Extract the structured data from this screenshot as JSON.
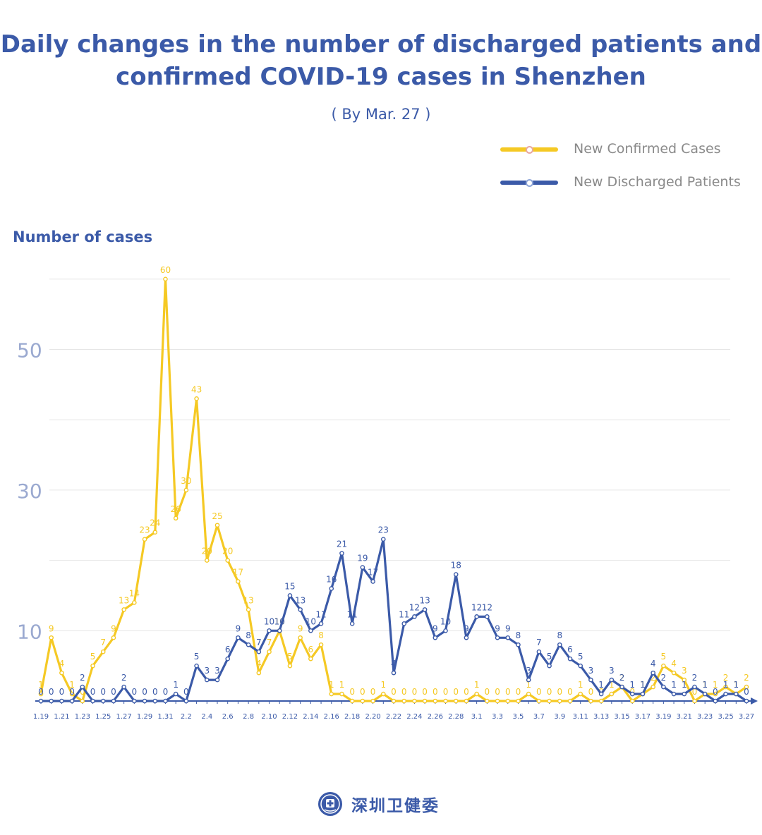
{
  "header": {
    "title_line1": "Daily changes in the number of discharged patients and",
    "title_line2": "confirmed COVID-19 cases in Shenzhen",
    "subtitle": "( By Mar. 27 )"
  },
  "legend": {
    "confirmed_label": "New Confirmed Cases",
    "discharged_label": "New Discharged Patients"
  },
  "footer": {
    "org_name": "深圳卫健委"
  },
  "chart_data": {
    "type": "line",
    "title": "Daily changes in the number of discharged patients and confirmed COVID-19 cases in Shenzhen",
    "subtitle": "( By Mar. 27 )",
    "ylabel": "Number of cases",
    "xlabel": "",
    "ylim": [
      0,
      60
    ],
    "y_ticks": [
      10,
      30,
      50
    ],
    "grid": true,
    "legend_position": "top-right",
    "x": [
      "1.19",
      "1.20",
      "1.21",
      "1.22",
      "1.23",
      "1.24",
      "1.25",
      "1.26",
      "1.27",
      "1.28",
      "1.29",
      "1.30",
      "1.31",
      "2.1",
      "2.2",
      "2.3",
      "2.4",
      "2.5",
      "2.6",
      "2.7",
      "2.8",
      "2.9",
      "2.10",
      "2.11",
      "2.12",
      "2.13",
      "2.14",
      "2.15",
      "2.16",
      "2.17",
      "2.18",
      "2.19",
      "2.20",
      "2.21",
      "2.22",
      "2.23",
      "2.24",
      "2.25",
      "2.26",
      "2.27",
      "2.28",
      "2.29",
      "3.1",
      "3.2",
      "3.3",
      "3.4",
      "3.5",
      "3.6",
      "3.7",
      "3.8",
      "3.9",
      "3.10",
      "3.11",
      "3.12",
      "3.13",
      "3.14",
      "3.15",
      "3.16",
      "3.17",
      "3.18",
      "3.19",
      "3.20",
      "3.21",
      "3.22",
      "3.23",
      "3.24",
      "3.25",
      "3.26",
      "3.27"
    ],
    "x_tick_labels": [
      "1.19",
      "1.21",
      "1.23",
      "1.25",
      "1.27",
      "1.29",
      "1.31",
      "2.2",
      "2.4",
      "2.6",
      "2.8",
      "2.10",
      "2.12",
      "2.14",
      "2.16",
      "2.18",
      "2.20",
      "2.22",
      "2.24",
      "2.26",
      "2.28",
      "3.1",
      "3.3",
      "3.5",
      "3.7",
      "3.9",
      "3.11",
      "3.13",
      "3.15",
      "3.17",
      "3.19",
      "3.21",
      "3.23",
      "3.25",
      "3.27"
    ],
    "series": [
      {
        "name": "New Confirmed Cases",
        "color": "#f5c924",
        "values": [
          1,
          9,
          4,
          1,
          0,
          5,
          7,
          9,
          13,
          14,
          23,
          24,
          60,
          26,
          30,
          43,
          20,
          25,
          20,
          17,
          13,
          4,
          7,
          10,
          5,
          9,
          6,
          8,
          1,
          1,
          0,
          0,
          0,
          1,
          0,
          0,
          0,
          0,
          0,
          0,
          0,
          0,
          1,
          0,
          0,
          0,
          0,
          1,
          0,
          0,
          0,
          0,
          1,
          0,
          0,
          1,
          2,
          0,
          1,
          2,
          5,
          4,
          3,
          0,
          1,
          1,
          2,
          1,
          2
        ]
      },
      {
        "name": "New Discharged Patients",
        "color": "#3b5aa8",
        "values": [
          0,
          0,
          0,
          0,
          2,
          0,
          0,
          0,
          2,
          0,
          0,
          0,
          0,
          1,
          0,
          5,
          3,
          3,
          6,
          9,
          8,
          7,
          10,
          10,
          15,
          13,
          10,
          11,
          16,
          21,
          11,
          19,
          17,
          23,
          4,
          11,
          12,
          13,
          9,
          10,
          18,
          9,
          12,
          12,
          9,
          9,
          8,
          3,
          7,
          5,
          8,
          6,
          5,
          3,
          1,
          3,
          2,
          1,
          1,
          4,
          2,
          1,
          1,
          2,
          1,
          0,
          1,
          1,
          0
        ]
      }
    ]
  }
}
